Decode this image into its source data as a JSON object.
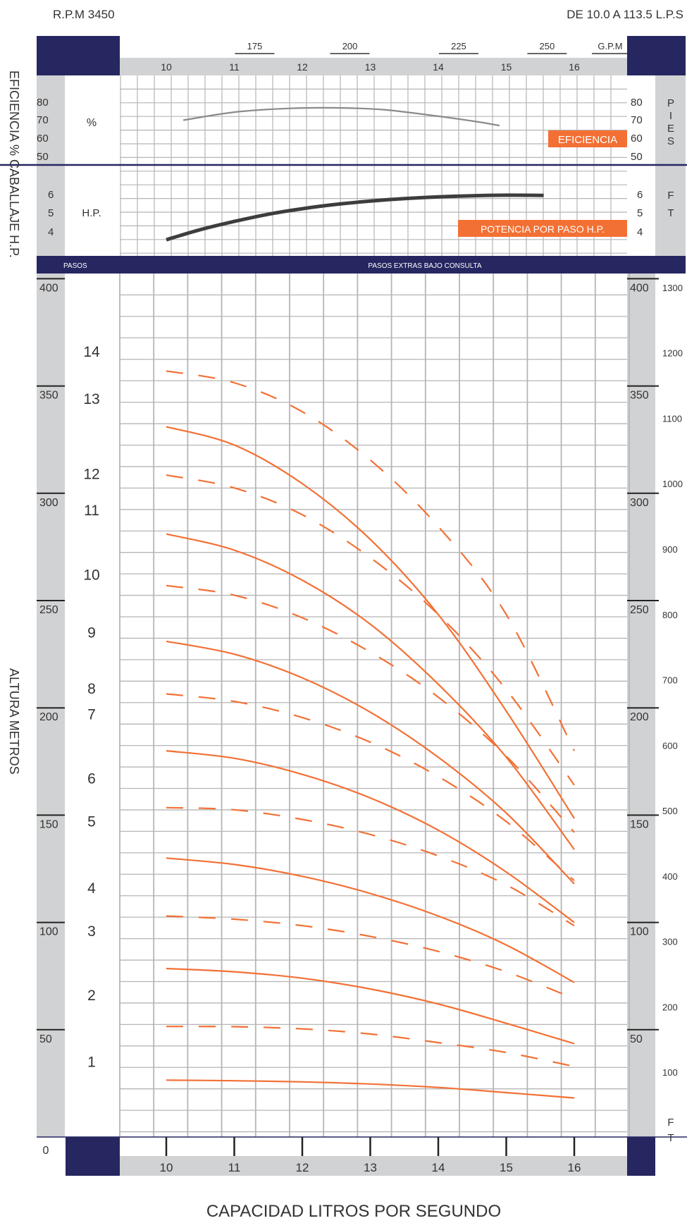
{
  "header": {
    "rpm": "R.P.M 3450",
    "range": "DE 10.0 A 113.5 L.P.S"
  },
  "labels": {
    "efficiency_hp_axis": "EFICIENCIA % CABALLAJE H.P.",
    "height_axis": "ALTURA  METROS",
    "capacity_axis": "CAPACIDAD LITROS POR SEGUNDO",
    "gpm_unit": "G.P.M",
    "percent_unit": "%",
    "hp_unit": "H.P.",
    "pies": "PIES",
    "ft": "FT",
    "ft_bottom": "FT",
    "pasos": "PASOS",
    "pasos_extras": "PASOS EXTRAS BAJO CONSULTA",
    "efficiency_tag": "EFICIENCIA",
    "power_tag": "POTENCIA POR PASO H.P.",
    "origin": "0"
  },
  "colors": {
    "navy": "#262661",
    "gray_panel": "#d1d2d4",
    "grid": "#b5b5b5",
    "orange": "#f37034",
    "eff_curve": "#8a8a8a",
    "hp_curve": "#3d3d3d",
    "text": "#333333"
  },
  "chart_data": {
    "type": "line",
    "x_axis": {
      "ticks": [
        "10",
        "11",
        "12",
        "13",
        "14",
        "15",
        "16"
      ],
      "range": [
        10,
        17
      ]
    },
    "gpm_ticks": [
      {
        "label": "175",
        "x": 11.3
      },
      {
        "label": "200",
        "x": 12.7
      },
      {
        "label": "225",
        "x": 14.3
      },
      {
        "label": "250",
        "x": 15.6
      }
    ],
    "efficiency": {
      "ticks_left": [
        "80",
        "70",
        "60",
        "50"
      ],
      "ticks_right": [
        "80",
        "70",
        "60",
        "50"
      ],
      "range": [
        48,
        85
      ],
      "x": [
        10.25,
        11,
        11.8,
        12.5,
        13.2,
        14,
        14.6,
        14.9
      ],
      "y": [
        70.2,
        74.5,
        76.5,
        76.8,
        75.8,
        72.3,
        69.2,
        67.3
      ]
    },
    "hp": {
      "ticks_left": [
        "6",
        "5",
        "4"
      ],
      "ticks_right": [
        "6",
        "5",
        "4"
      ],
      "range": [
        3,
        7.5
      ],
      "x": [
        10,
        10.5,
        11,
        11.5,
        12,
        12.5,
        13,
        13.5,
        14,
        14.5,
        15,
        15.55
      ],
      "y": [
        3.59,
        4.12,
        4.55,
        4.93,
        5.22,
        5.45,
        5.62,
        5.75,
        5.84,
        5.9,
        5.93,
        5.92
      ]
    },
    "head": {
      "ticks_left": [
        "400",
        "350",
        "300",
        "250",
        "200",
        "150",
        "100",
        "50"
      ],
      "ticks_right": [
        "400",
        "350",
        "300",
        "250",
        "200",
        "150",
        "100",
        "50"
      ],
      "ft_ticks": [
        "1300",
        "1200",
        "1100",
        "1000",
        "900",
        "800",
        "700",
        "600",
        "500",
        "400",
        "300",
        "200",
        "100"
      ],
      "range": [
        0,
        400
      ]
    },
    "stages": [
      {
        "label": "1",
        "y": 35,
        "style": "solid",
        "values": [
          26.5,
          26.2,
          25.7,
          24.7,
          23.1,
          20.7,
          18.2
        ]
      },
      {
        "label": "2",
        "y": 66,
        "style": "dashed",
        "values": [
          51.5,
          51.4,
          50.4,
          48.0,
          44.0,
          39.4,
          32.9
        ]
      },
      {
        "label": "3",
        "y": 96,
        "style": "solid",
        "values": [
          78.5,
          77.0,
          74.0,
          69.0,
          62.0,
          53.0,
          43.5
        ]
      },
      {
        "label": "4",
        "y": 116,
        "style": "dashed",
        "values": [
          103.0,
          101.5,
          98.5,
          93.5,
          86.5,
          77.0,
          64.5
        ]
      },
      {
        "label": "5",
        "y": 147,
        "style": "solid",
        "values": [
          130.0,
          127.0,
          121.5,
          113.5,
          103.0,
          89.5,
          72.0
        ]
      },
      {
        "label": "6",
        "y": 167,
        "style": "dashed",
        "values": [
          153.5,
          152.5,
          148.0,
          141.0,
          131.0,
          117.5,
          98.5
        ]
      },
      {
        "label": "7",
        "y": 197,
        "style": "solid",
        "values": [
          180.0,
          176.5,
          169.0,
          158.0,
          143.0,
          123.5,
          100.0
        ]
      },
      {
        "label": "8",
        "y": 209,
        "style": "dashed",
        "values": [
          206.5,
          203.0,
          195.5,
          184.0,
          168.0,
          147.0,
          119.5
        ]
      },
      {
        "label": "9",
        "y": 235,
        "style": "solid",
        "values": [
          231.0,
          225.0,
          214.0,
          198.0,
          177.0,
          151.0,
          118.0
        ]
      },
      {
        "label": "10",
        "y": 262,
        "style": "dashed",
        "values": [
          257.0,
          252.5,
          242.0,
          226.0,
          205.0,
          177.5,
          142.0
        ]
      },
      {
        "label": "11",
        "y": 292,
        "style": "solid",
        "values": [
          281.0,
          273.5,
          259.5,
          239.0,
          211.0,
          177.0,
          134.0
        ]
      },
      {
        "label": "12",
        "y": 309,
        "style": "dashed",
        "values": [
          308.5,
          302.5,
          290.0,
          270.0,
          243.5,
          208.5,
          164.0
        ]
      },
      {
        "label": "13",
        "y": 344,
        "style": "solid",
        "values": [
          331.0,
          322.5,
          304.5,
          278.5,
          243.5,
          198.5,
          148.5
        ]
      },
      {
        "label": "14",
        "y": 366,
        "style": "dashed",
        "values": [
          357.0,
          351.5,
          338.0,
          315.5,
          284.5,
          243.5,
          180.0
        ]
      }
    ]
  }
}
